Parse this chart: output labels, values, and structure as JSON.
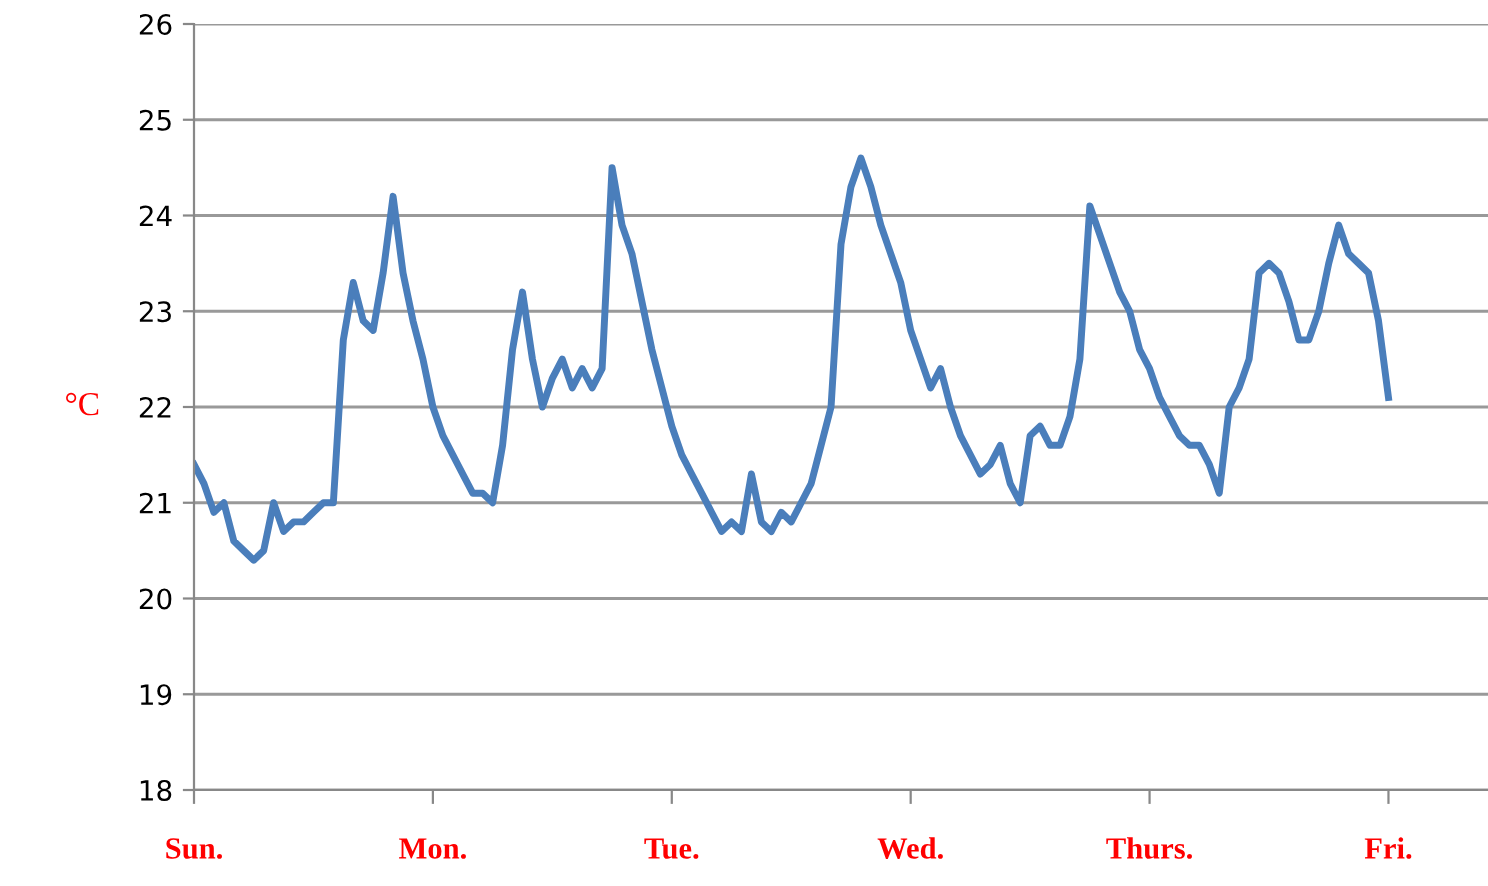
{
  "chart_data": {
    "type": "line",
    "ylabel": "°C",
    "categories": [
      "Sun.",
      null,
      null,
      null,
      null,
      null,
      null,
      null,
      null,
      null,
      null,
      null,
      null,
      null,
      null,
      null,
      null,
      null,
      null,
      null,
      null,
      null,
      null,
      null,
      "Mon.",
      null,
      null,
      null,
      null,
      null,
      null,
      null,
      null,
      null,
      null,
      null,
      null,
      null,
      null,
      null,
      null,
      null,
      null,
      null,
      null,
      null,
      null,
      null,
      "Tue.",
      null,
      null,
      null,
      null,
      null,
      null,
      null,
      null,
      null,
      null,
      null,
      null,
      null,
      null,
      null,
      null,
      null,
      null,
      null,
      null,
      null,
      null,
      null,
      "Wed.",
      null,
      null,
      null,
      null,
      null,
      null,
      null,
      null,
      null,
      null,
      null,
      null,
      null,
      null,
      null,
      null,
      null,
      null,
      null,
      null,
      null,
      null,
      null,
      "Thurs.",
      null,
      null,
      null,
      null,
      null,
      null,
      null,
      null,
      null,
      null,
      null,
      null,
      null,
      null,
      null,
      null,
      null,
      null,
      null,
      null,
      null,
      null,
      null,
      "Fri.",
      null,
      null,
      null,
      null,
      null,
      null,
      null,
      null,
      null,
      null
    ],
    "series": [
      {
        "color": "#4a7ebb",
        "values": [
          21.4,
          21.2,
          20.9,
          21.0,
          20.6,
          20.5,
          20.4,
          20.5,
          21.0,
          20.7,
          20.8,
          20.8,
          20.9,
          21.0,
          21.0,
          22.7,
          23.3,
          22.9,
          22.8,
          23.4,
          24.2,
          23.4,
          22.9,
          22.5,
          22.0,
          21.7,
          21.5,
          21.3,
          21.1,
          21.1,
          21.0,
          21.6,
          22.6,
          23.2,
          22.5,
          22.0,
          22.3,
          22.5,
          22.2,
          22.4,
          22.2,
          22.4,
          24.5,
          23.9,
          23.6,
          23.1,
          22.6,
          22.2,
          21.8,
          21.5,
          21.3,
          21.1,
          20.9,
          20.7,
          20.8,
          20.7,
          21.3,
          20.8,
          20.7,
          20.9,
          20.8,
          21.0,
          21.2,
          21.6,
          22.0,
          23.7,
          24.3,
          24.6,
          24.3,
          23.9,
          23.6,
          23.3,
          22.8,
          22.5,
          22.2,
          22.4,
          22.0,
          21.7,
          21.5,
          21.3,
          21.4,
          21.6,
          21.2,
          21.0,
          21.7,
          21.8,
          21.6,
          21.6,
          21.9,
          22.5,
          24.1,
          23.8,
          23.5,
          23.2,
          23.0,
          22.6,
          22.4,
          22.1,
          21.9,
          21.7,
          21.6,
          21.6,
          21.4,
          21.1,
          22.0,
          22.2,
          22.5,
          23.4,
          23.5,
          23.4,
          23.1,
          22.7,
          22.7,
          23.0,
          23.5,
          23.9,
          23.6,
          23.5,
          23.4,
          22.9,
          22.1,
          null,
          null,
          null,
          null,
          null,
          null,
          null,
          null,
          null,
          null
        ]
      }
    ],
    "ylim": [
      18,
      26
    ],
    "yticks": [
      18,
      19,
      20,
      21,
      22,
      23,
      24,
      25,
      26
    ],
    "grid": "y",
    "marker": "none",
    "line_style": "solid"
  }
}
